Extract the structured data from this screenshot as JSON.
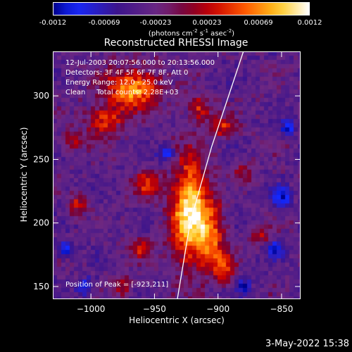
{
  "colorbar": {
    "tick_labels": [
      "-0.0012",
      "-0.00069",
      "-0.00023",
      "0.00023",
      "0.00069",
      "0.0012"
    ],
    "unit_label": {
      "prefix": "(photons cm",
      "cm_exp": "-2",
      "mid": " s",
      "s_exp": "-1",
      "after": " asec",
      "asec_exp": "-2",
      "suffix": ")"
    }
  },
  "chart_data": {
    "type": "heatmap",
    "title": "Reconstructed RHESSI Image",
    "xlabel": "Heliocentric X (arcsec)",
    "ylabel": "Heliocentric Y (arcsec)",
    "xlim": [
      -1030,
      -835
    ],
    "ylim": [
      140,
      335
    ],
    "x_ticks": [
      -1000,
      -950,
      -900,
      -850
    ],
    "y_ticks": [
      150,
      200,
      250,
      300
    ],
    "colorbar_range": [
      -0.0012,
      0.0012
    ],
    "colormap": "blue-purple-red-yellow-white",
    "annotations": [
      "12-Jul-2003 20:07:56.000 to 20:13:56.000",
      "Detectors: 3F 4F 5F 6F 7F 8F, Att 0",
      "Energy Range: 12.0 - 25.0 keV",
      "Clean     Total counts: 2.28E+03"
    ],
    "peak_label": "Position of Peak = [-923,211]",
    "limb_curve": [
      [
        -932,
        140
      ],
      [
        -922,
        200
      ],
      [
        -905,
        260
      ],
      [
        -880,
        335
      ]
    ],
    "bright_regions": [
      {
        "x": -922,
        "y": 208,
        "rx": 14,
        "ry": 40,
        "intensity": 1.0
      },
      {
        "x": -967,
        "y": 305,
        "rx": 20,
        "ry": 16,
        "intensity": 0.8
      },
      {
        "x": -990,
        "y": 280,
        "rx": 14,
        "ry": 12,
        "intensity": 0.55
      },
      {
        "x": -955,
        "y": 230,
        "rx": 10,
        "ry": 10,
        "intensity": 0.5
      },
      {
        "x": -905,
        "y": 190,
        "rx": 10,
        "ry": 25,
        "intensity": 0.55
      },
      {
        "x": -895,
        "y": 165,
        "rx": 8,
        "ry": 12,
        "intensity": 0.5
      },
      {
        "x": -915,
        "y": 290,
        "rx": 8,
        "ry": 10,
        "intensity": 0.45
      },
      {
        "x": -895,
        "y": 275,
        "rx": 10,
        "ry": 8,
        "intensity": 0.45
      },
      {
        "x": -1015,
        "y": 265,
        "rx": 8,
        "ry": 8,
        "intensity": 0.4
      },
      {
        "x": -1010,
        "y": 215,
        "rx": 8,
        "ry": 8,
        "intensity": 0.4
      },
      {
        "x": -960,
        "y": 180,
        "rx": 10,
        "ry": 8,
        "intensity": 0.4
      },
      {
        "x": -975,
        "y": 150,
        "rx": 8,
        "ry": 8,
        "intensity": 0.35
      },
      {
        "x": -865,
        "y": 190,
        "rx": 8,
        "ry": 8,
        "intensity": 0.35
      },
      {
        "x": -880,
        "y": 240,
        "rx": 8,
        "ry": 8,
        "intensity": 0.3
      }
    ],
    "dim_regions": [
      {
        "x": -850,
        "y": 220,
        "r": 8
      },
      {
        "x": -855,
        "y": 180,
        "r": 7
      },
      {
        "x": -845,
        "y": 275,
        "r": 6
      },
      {
        "x": -940,
        "y": 255,
        "r": 6
      },
      {
        "x": -1020,
        "y": 180,
        "r": 6
      },
      {
        "x": -880,
        "y": 150,
        "r": 6
      },
      {
        "x": -1005,
        "y": 150,
        "r": 6
      }
    ]
  },
  "footer": {
    "date": "3-May-2022 15:38"
  }
}
